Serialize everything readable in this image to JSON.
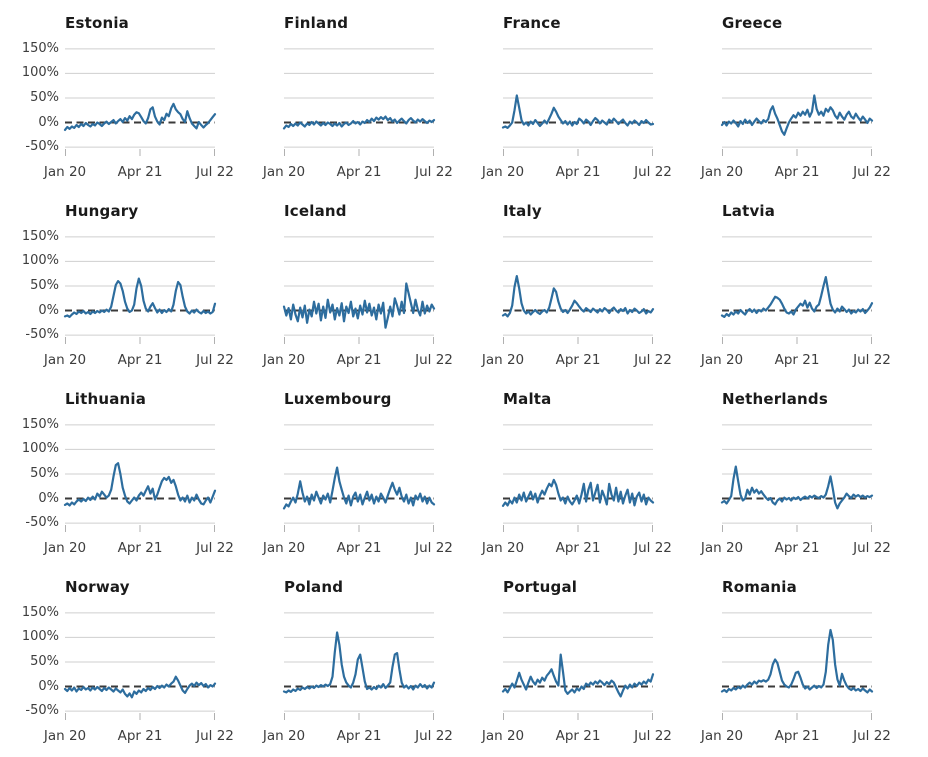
{
  "colors": {
    "line": "#2d6d9e",
    "grid_line": "#cfcfcf",
    "zero_line": "#3a3a3a",
    "title_text": "#1a1a1a",
    "tick_text": "#3d3d3d",
    "background": "#ffffff"
  },
  "chart_data": {
    "type": "line",
    "layout": "small-multiples 4x4",
    "unit": "percent",
    "x_ticks": [
      "Jan 20",
      "Apr 21",
      "Jul 22"
    ],
    "x_range": [
      "Jan 2020",
      "Jul 2022"
    ],
    "y_ticks": [
      "150%",
      "100%",
      "50%",
      "0%",
      "-50%"
    ],
    "y_tick_values": [
      150,
      100,
      50,
      0,
      -50
    ],
    "ylim": [
      -62,
      168
    ],
    "grid": true,
    "zero_line_dashed": true,
    "legend": "none",
    "series": [
      {
        "name": "Estonia",
        "values": [
          -15,
          -9,
          -13,
          -8,
          -11,
          -5,
          -9,
          -3,
          -7,
          -1,
          -5,
          -8,
          -3,
          -6,
          0,
          -3,
          -7,
          -2,
          2,
          -3,
          1,
          5,
          -2,
          3,
          7,
          1,
          9,
          4,
          13,
          7,
          16,
          21,
          19,
          11,
          3,
          -2,
          9,
          27,
          31,
          12,
          2,
          -4,
          10,
          5,
          18,
          13,
          29,
          38,
          27,
          21,
          17,
          7,
          1,
          23,
          9,
          -2,
          -7,
          -12,
          1,
          -5,
          -10,
          -5,
          -1,
          5,
          11,
          17
        ]
      },
      {
        "name": "Finland",
        "values": [
          -12,
          -6,
          -9,
          -3,
          -7,
          -2,
          -6,
          0,
          -4,
          -8,
          -2,
          -5,
          1,
          -4,
          2,
          -2,
          -6,
          -1,
          -5,
          0,
          -3,
          -7,
          -2,
          -6,
          -1,
          -8,
          -3,
          0,
          -5,
          -2,
          3,
          -2,
          1,
          -4,
          2,
          -1,
          5,
          1,
          8,
          3,
          10,
          6,
          11,
          7,
          12,
          5,
          9,
          2,
          6,
          -1,
          4,
          8,
          3,
          -2,
          5,
          9,
          4,
          0,
          6,
          2,
          7,
          3,
          -1,
          4,
          1,
          5
        ]
      },
      {
        "name": "France",
        "values": [
          -10,
          -8,
          -11,
          -6,
          0,
          25,
          55,
          30,
          5,
          -4,
          0,
          -6,
          2,
          -3,
          5,
          -1,
          -7,
          -2,
          4,
          -2,
          8,
          18,
          30,
          22,
          12,
          5,
          -2,
          3,
          -4,
          2,
          -6,
          1,
          -3,
          8,
          4,
          -2,
          6,
          2,
          -5,
          3,
          9,
          5,
          -2,
          4,
          0,
          -4,
          6,
          1,
          8,
          3,
          -3,
          2,
          6,
          -1,
          -6,
          2,
          -2,
          4,
          0,
          -5,
          3,
          -1,
          5,
          0,
          -4,
          -3
        ]
      },
      {
        "name": "Greece",
        "values": [
          -5,
          1,
          -6,
          2,
          -2,
          4,
          -1,
          -8,
          3,
          -3,
          6,
          -1,
          4,
          -5,
          2,
          8,
          3,
          -2,
          5,
          1,
          7,
          25,
          33,
          18,
          8,
          -5,
          -18,
          -25,
          -12,
          0,
          8,
          15,
          10,
          20,
          14,
          22,
          16,
          26,
          12,
          22,
          55,
          28,
          16,
          22,
          14,
          28,
          22,
          31,
          25,
          14,
          8,
          20,
          12,
          6,
          16,
          22,
          12,
          8,
          18,
          10,
          4,
          12,
          6,
          -1,
          8,
          4
        ]
      },
      {
        "name": "Hungary",
        "values": [
          -12,
          -10,
          -13,
          -8,
          -4,
          -7,
          -2,
          -5,
          -1,
          -6,
          -3,
          -7,
          -2,
          -5,
          -1,
          -4,
          0,
          -3,
          2,
          -2,
          8,
          30,
          52,
          60,
          55,
          40,
          18,
          4,
          -3,
          0,
          12,
          45,
          65,
          50,
          20,
          4,
          -2,
          8,
          15,
          5,
          -4,
          2,
          -5,
          1,
          -3,
          3,
          -2,
          12,
          40,
          58,
          52,
          28,
          8,
          -2,
          -6,
          0,
          -4,
          2,
          -3,
          -6,
          -1,
          -5,
          -2,
          -6,
          -3,
          14
        ]
      },
      {
        "name": "Iceland",
        "values": [
          8,
          -10,
          5,
          -18,
          12,
          -8,
          -22,
          6,
          -14,
          10,
          -25,
          2,
          -12,
          18,
          -6,
          14,
          -20,
          8,
          -15,
          22,
          -4,
          12,
          -18,
          5,
          -10,
          15,
          -22,
          8,
          -5,
          18,
          -12,
          4,
          -16,
          10,
          -8,
          20,
          -4,
          14,
          -10,
          6,
          -18,
          12,
          -6,
          16,
          -35,
          -15,
          8,
          -12,
          25,
          10,
          -8,
          18,
          -5,
          55,
          35,
          15,
          -5,
          22,
          2,
          -10,
          18,
          -6,
          10,
          -2,
          12,
          4
        ]
      },
      {
        "name": "Italy",
        "values": [
          -10,
          -7,
          -12,
          -5,
          10,
          48,
          70,
          45,
          15,
          0,
          -6,
          -2,
          -8,
          -3,
          1,
          -4,
          -7,
          -2,
          1,
          -4,
          6,
          25,
          45,
          38,
          18,
          4,
          -3,
          1,
          -5,
          2,
          10,
          20,
          15,
          8,
          2,
          -2,
          5,
          1,
          -3,
          4,
          0,
          -4,
          3,
          -2,
          5,
          1,
          -5,
          2,
          6,
          0,
          -4,
          3,
          -1,
          5,
          -6,
          1,
          -3,
          4,
          0,
          -5,
          -2,
          3,
          -6,
          -1,
          -4,
          3
        ]
      },
      {
        "name": "Latvia",
        "values": [
          -10,
          -13,
          -7,
          -11,
          -4,
          -8,
          -2,
          -6,
          1,
          -4,
          -8,
          -1,
          3,
          -3,
          2,
          -5,
          1,
          -2,
          4,
          0,
          6,
          12,
          20,
          28,
          26,
          22,
          14,
          4,
          -4,
          -6,
          -2,
          -8,
          2,
          8,
          14,
          10,
          20,
          6,
          16,
          4,
          -2,
          8,
          12,
          30,
          50,
          68,
          40,
          14,
          2,
          -4,
          4,
          -2,
          8,
          3,
          -3,
          2,
          -6,
          -1,
          -4,
          2,
          -2,
          3,
          -5,
          0,
          6,
          15
        ]
      },
      {
        "name": "Lithuania",
        "values": [
          -13,
          -10,
          -14,
          -8,
          -12,
          -6,
          -2,
          -6,
          -1,
          -5,
          2,
          -3,
          4,
          -2,
          10,
          4,
          14,
          8,
          2,
          6,
          18,
          45,
          68,
          72,
          50,
          22,
          6,
          -6,
          -10,
          -4,
          2,
          -4,
          6,
          12,
          6,
          16,
          25,
          10,
          20,
          -2,
          8,
          22,
          35,
          42,
          38,
          44,
          32,
          38,
          25,
          8,
          -4,
          2,
          -6,
          6,
          -8,
          2,
          -4,
          8,
          -2,
          -10,
          -12,
          -4,
          2,
          -8,
          4,
          16
        ]
      },
      {
        "name": "Luxembourg",
        "values": [
          -20,
          -12,
          -16,
          -6,
          2,
          -8,
          10,
          35,
          12,
          -6,
          4,
          -12,
          8,
          -4,
          14,
          2,
          -10,
          6,
          -2,
          10,
          -8,
          16,
          42,
          63,
          35,
          18,
          2,
          -10,
          6,
          -14,
          4,
          12,
          -6,
          8,
          -12,
          2,
          14,
          -4,
          8,
          -10,
          4,
          -6,
          10,
          2,
          -8,
          6,
          20,
          32,
          18,
          8,
          22,
          4,
          -6,
          8,
          -10,
          2,
          -14,
          6,
          -2,
          10,
          -6,
          4,
          -10,
          2,
          -8,
          -12
        ]
      },
      {
        "name": "Malta",
        "values": [
          -15,
          -8,
          -14,
          -4,
          -10,
          2,
          -8,
          8,
          -4,
          12,
          -6,
          4,
          14,
          -2,
          10,
          -8,
          6,
          16,
          8,
          20,
          30,
          25,
          38,
          28,
          10,
          -4,
          2,
          -10,
          4,
          -6,
          -12,
          -4,
          6,
          -10,
          8,
          30,
          -6,
          18,
          32,
          -4,
          12,
          28,
          -8,
          16,
          4,
          -12,
          30,
          8,
          -4,
          22,
          -6,
          14,
          -10,
          6,
          18,
          -8,
          10,
          -14,
          4,
          12,
          -6,
          8,
          -12,
          2,
          -4,
          -8
        ]
      },
      {
        "name": "Netherlands",
        "values": [
          -8,
          -5,
          -10,
          -3,
          5,
          40,
          65,
          35,
          8,
          -4,
          0,
          18,
          8,
          22,
          12,
          18,
          10,
          15,
          8,
          2,
          -3,
          1,
          -8,
          -12,
          -4,
          0,
          -6,
          2,
          -2,
          1,
          -4,
          2,
          -1,
          3,
          -3,
          1,
          4,
          0,
          5,
          2,
          6,
          3,
          1,
          5,
          2,
          8,
          25,
          45,
          20,
          -8,
          -20,
          -10,
          -4,
          2,
          10,
          5,
          1,
          8,
          4,
          7,
          3,
          6,
          2,
          5,
          3,
          6
        ]
      },
      {
        "name": "Norway",
        "values": [
          -5,
          -9,
          -3,
          -8,
          -2,
          -10,
          -4,
          -7,
          -1,
          -6,
          -3,
          -8,
          -2,
          -6,
          -1,
          -5,
          -9,
          -3,
          -7,
          -2,
          -6,
          -10,
          -4,
          -8,
          -12,
          -6,
          -15,
          -20,
          -14,
          -22,
          -10,
          -15,
          -8,
          -12,
          -5,
          -9,
          -3,
          -7,
          -1,
          -5,
          1,
          -3,
          2,
          -2,
          4,
          0,
          6,
          10,
          20,
          12,
          2,
          -8,
          -13,
          -5,
          2,
          6,
          1,
          8,
          3,
          7,
          1,
          5,
          -2,
          3,
          0,
          6
        ]
      },
      {
        "name": "Poland",
        "values": [
          -10,
          -12,
          -8,
          -11,
          -6,
          -9,
          -4,
          -7,
          -2,
          -5,
          -1,
          -4,
          0,
          -3,
          2,
          -1,
          3,
          0,
          4,
          1,
          5,
          20,
          70,
          110,
          85,
          45,
          20,
          8,
          2,
          -2,
          8,
          25,
          55,
          65,
          38,
          10,
          -5,
          -2,
          -6,
          -1,
          -5,
          2,
          -2,
          5,
          -3,
          2,
          8,
          40,
          65,
          68,
          35,
          8,
          -2,
          2,
          -4,
          1,
          -6,
          2,
          -2,
          5,
          -1,
          3,
          -4,
          2,
          -2,
          8
        ]
      },
      {
        "name": "Portugal",
        "values": [
          -10,
          -5,
          -12,
          -3,
          6,
          -2,
          12,
          28,
          14,
          4,
          -6,
          8,
          20,
          10,
          4,
          14,
          8,
          18,
          12,
          22,
          28,
          35,
          22,
          10,
          2,
          65,
          30,
          -8,
          -15,
          -10,
          -6,
          -12,
          -4,
          -8,
          0,
          -5,
          6,
          2,
          8,
          4,
          10,
          6,
          12,
          8,
          3,
          9,
          5,
          12,
          8,
          -2,
          -12,
          -20,
          -8,
          2,
          -4,
          4,
          -2,
          6,
          1,
          8,
          4,
          10,
          6,
          14,
          10,
          25
        ]
      },
      {
        "name": "Romania",
        "values": [
          -10,
          -7,
          -11,
          -5,
          -8,
          -3,
          -6,
          -1,
          -4,
          2,
          -2,
          4,
          8,
          4,
          10,
          6,
          12,
          10,
          13,
          10,
          14,
          25,
          45,
          55,
          48,
          30,
          12,
          4,
          0,
          -2,
          4,
          15,
          28,
          30,
          18,
          4,
          -4,
          0,
          -6,
          -2,
          2,
          -3,
          1,
          -2,
          4,
          30,
          85,
          115,
          95,
          45,
          15,
          2,
          26,
          12,
          2,
          -4,
          -7,
          -3,
          -8,
          -5,
          -9,
          -4,
          -8,
          -12,
          -6,
          -10
        ]
      }
    ]
  }
}
